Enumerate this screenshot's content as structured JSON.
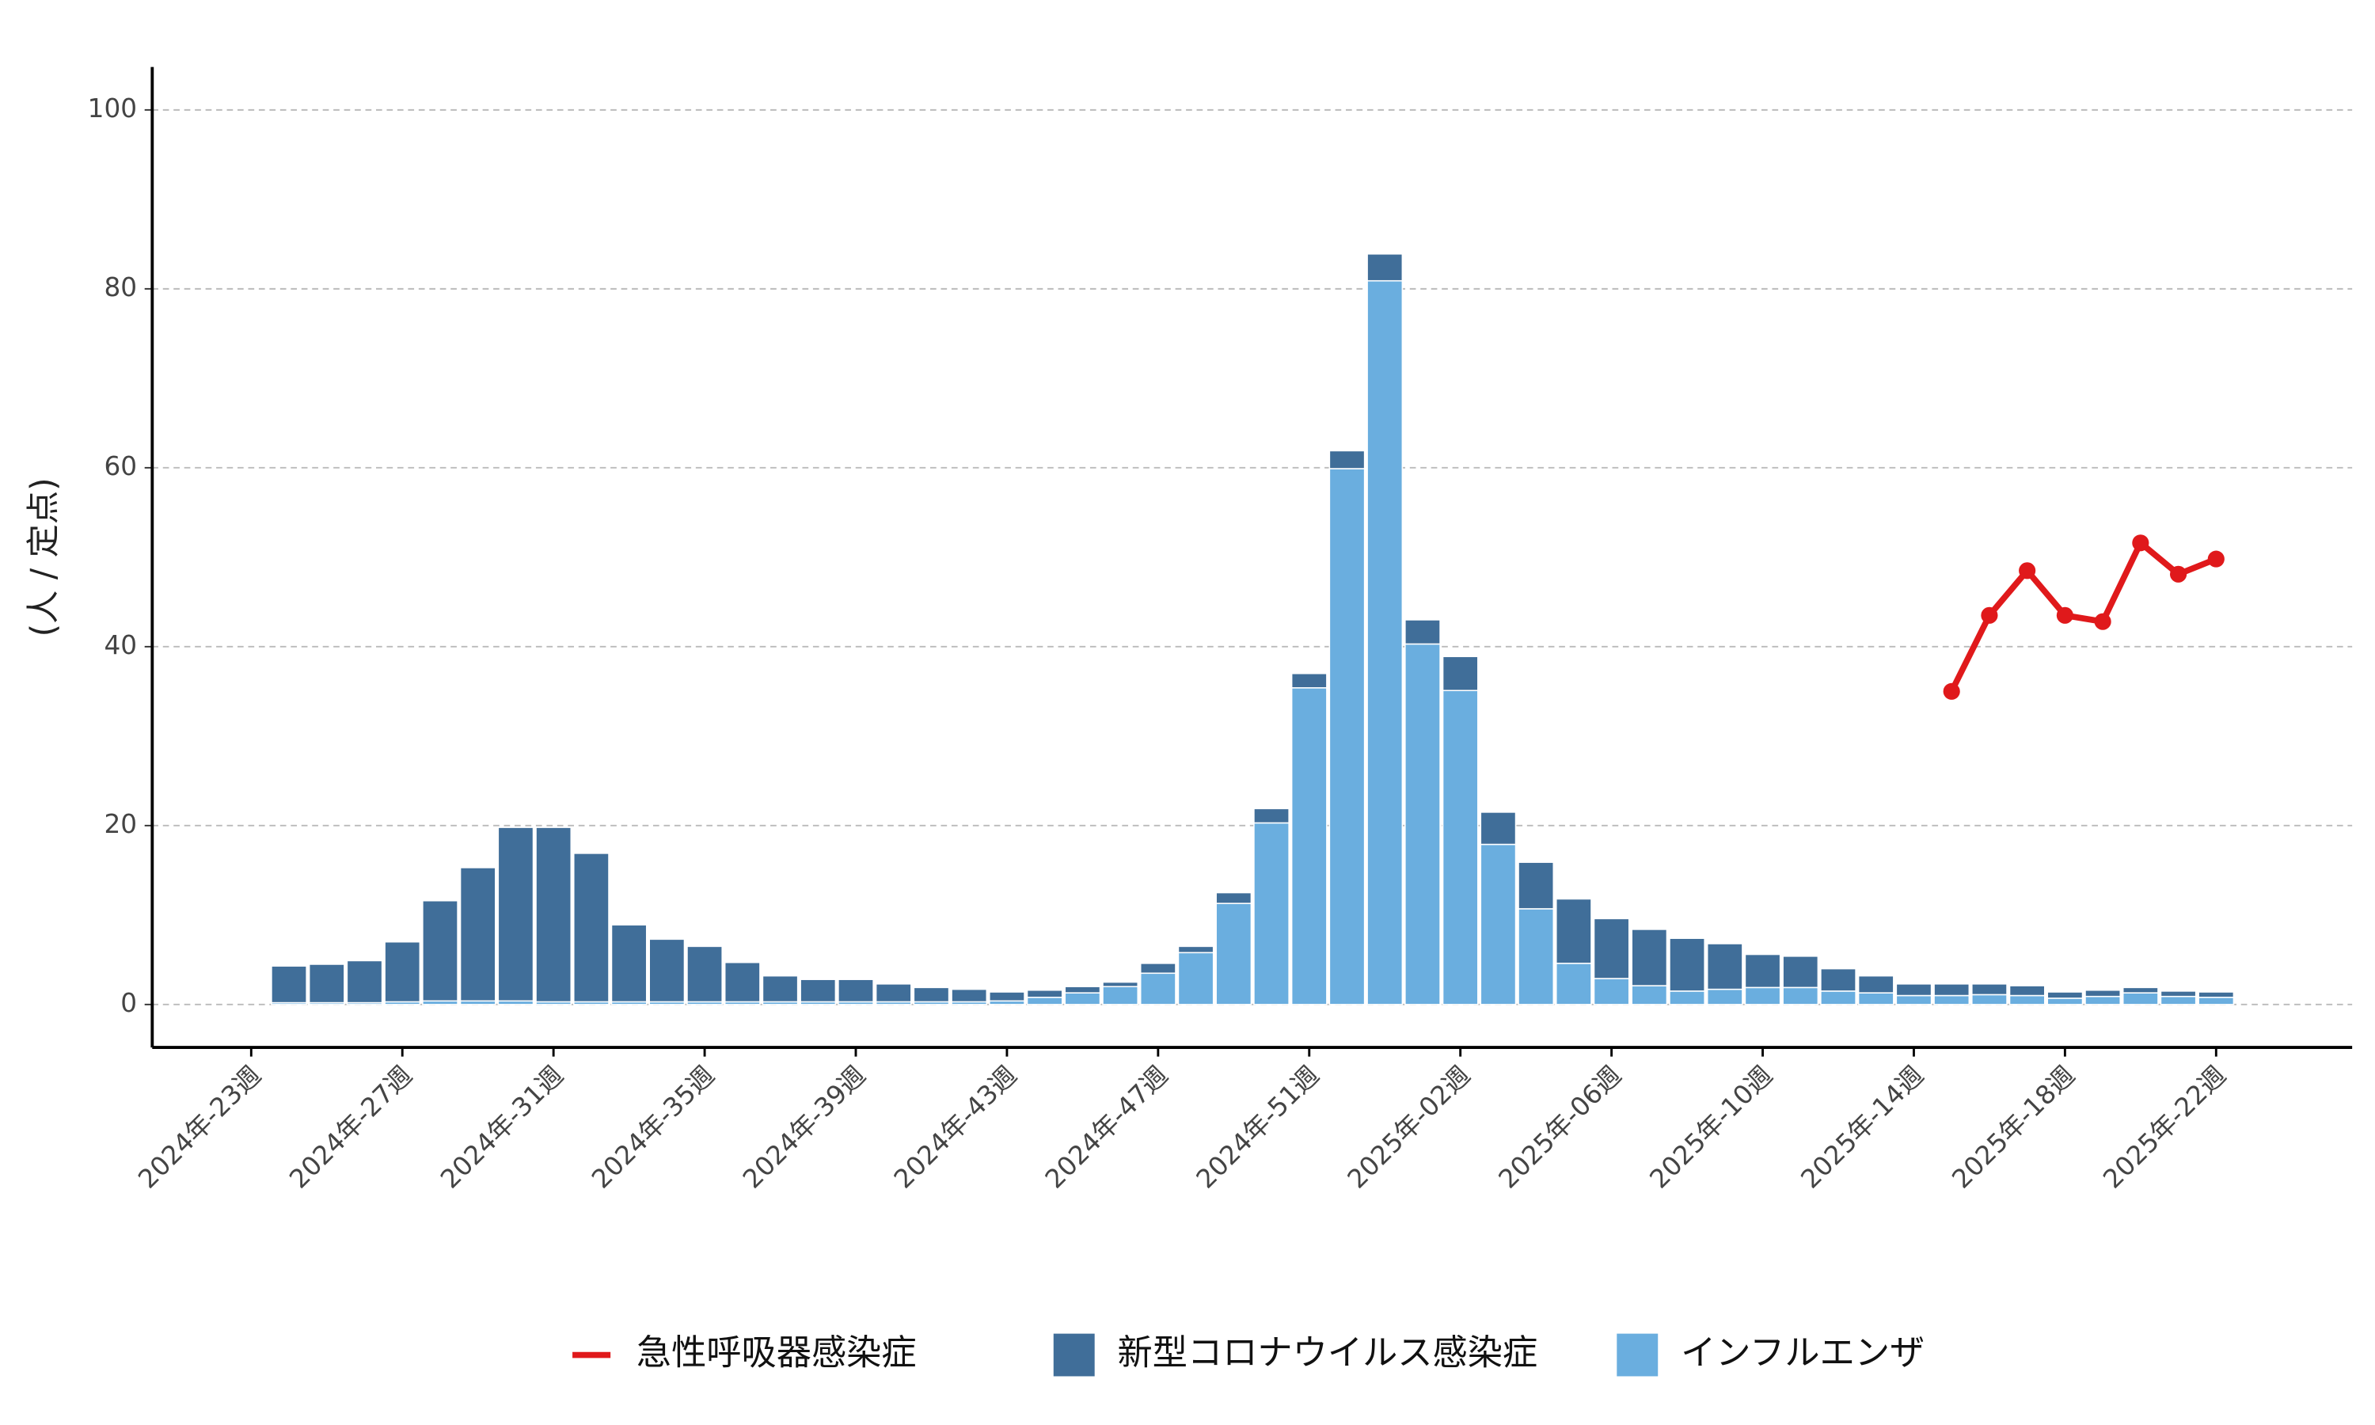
{
  "chart_data": {
    "type": "bar",
    "stacked": true,
    "ylabel": "(人 / 定点)",
    "categories": [
      "2024年-23週",
      null,
      null,
      null,
      "2024年-27週",
      null,
      null,
      null,
      "2024年-31週",
      null,
      null,
      null,
      "2024年-35週",
      null,
      null,
      null,
      "2024年-39週",
      null,
      null,
      null,
      "2024年-43週",
      null,
      null,
      null,
      "2024年-47週",
      null,
      null,
      null,
      "2024年-51週",
      null,
      null,
      null,
      "2025年-02週",
      null,
      null,
      null,
      "2025年-06週",
      null,
      null,
      null,
      "2025年-10週",
      null,
      null,
      null,
      "2025年-14週",
      null,
      null,
      null,
      "2025年-18週",
      null,
      null,
      null,
      "2025年-22週"
    ],
    "series": [
      {
        "name": "急性呼吸器感染症",
        "type": "line",
        "color": "#e0191b",
        "values": [
          null,
          null,
          null,
          null,
          null,
          null,
          null,
          null,
          null,
          null,
          null,
          null,
          null,
          null,
          null,
          null,
          null,
          null,
          null,
          null,
          null,
          null,
          null,
          null,
          null,
          null,
          null,
          null,
          null,
          null,
          null,
          null,
          null,
          null,
          null,
          null,
          null,
          null,
          null,
          null,
          null,
          null,
          null,
          null,
          null,
          35.0,
          43.5,
          48.5,
          43.5,
          42.8,
          51.6,
          48.1,
          49.8
        ]
      },
      {
        "name": "新型コロナウイルス感染症",
        "type": "bar",
        "color": "#406e99",
        "values": [
          null,
          4.1,
          4.3,
          4.7,
          6.7,
          11.2,
          14.9,
          19.4,
          19.5,
          16.6,
          8.6,
          7.0,
          6.2,
          4.4,
          2.9,
          2.5,
          2.5,
          2.0,
          1.6,
          1.4,
          1.0,
          0.8,
          0.7,
          0.5,
          1.1,
          0.7,
          1.2,
          1.6,
          1.6,
          2.0,
          3.0,
          2.7,
          3.8,
          3.6,
          5.2,
          7.2,
          6.7,
          6.3,
          5.9,
          5.1,
          3.7,
          3.5,
          2.5,
          1.9,
          1.3,
          1.3,
          1.2,
          1.1,
          0.7,
          0.7,
          0.6,
          0.6,
          0.6
        ]
      },
      {
        "name": "インフルエンザ",
        "type": "bar",
        "color": "#6aaedf",
        "values": [
          null,
          0.2,
          0.2,
          0.2,
          0.3,
          0.4,
          0.4,
          0.4,
          0.3,
          0.3,
          0.3,
          0.3,
          0.3,
          0.3,
          0.3,
          0.3,
          0.3,
          0.3,
          0.3,
          0.3,
          0.4,
          0.8,
          1.3,
          2.0,
          3.5,
          5.8,
          11.3,
          20.3,
          35.4,
          59.9,
          80.9,
          40.3,
          35.1,
          17.9,
          10.7,
          4.6,
          2.9,
          2.1,
          1.5,
          1.7,
          1.9,
          1.9,
          1.5,
          1.3,
          1.0,
          1.0,
          1.1,
          1.0,
          0.7,
          0.9,
          1.3,
          0.9,
          0.8
        ]
      }
    ],
    "ylim": [
      -4.8,
      104.8
    ],
    "yticks": [
      0,
      20,
      40,
      60,
      80,
      100
    ],
    "grid": true,
    "legend": "bottom"
  }
}
